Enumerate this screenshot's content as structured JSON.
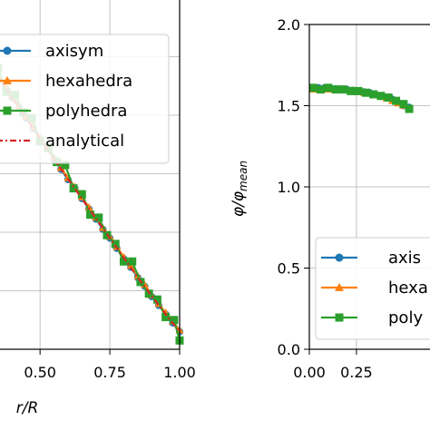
{
  "chart_data": [
    {
      "type": "line",
      "xlabel": "r/R",
      "ylabel": "",
      "xlim": [
        0.35,
        1.0
      ],
      "ylim": [
        0.0,
        1.2
      ],
      "xticks": [
        "0.50",
        "0.75",
        "1.00"
      ],
      "grid": true,
      "legend_position": "top-left",
      "series": [
        {
          "name": "axisym",
          "color": "#1f77b4",
          "marker": "circle",
          "x": [
            0.35,
            0.375,
            0.4,
            0.425,
            0.45,
            0.475,
            0.5,
            0.525,
            0.55,
            0.575,
            0.6,
            0.625,
            0.65,
            0.675,
            0.7,
            0.725,
            0.75,
            0.775,
            0.8,
            0.825,
            0.85,
            0.875,
            0.9,
            0.925,
            0.95,
            0.975,
            1.0
          ],
          "y": [
            0.93,
            0.895,
            0.86,
            0.825,
            0.79,
            0.755,
            0.72,
            0.685,
            0.65,
            0.615,
            0.58,
            0.55,
            0.515,
            0.48,
            0.445,
            0.41,
            0.38,
            0.345,
            0.31,
            0.28,
            0.245,
            0.215,
            0.18,
            0.15,
            0.12,
            0.09,
            0.06
          ]
        },
        {
          "name": "hexahedra",
          "color": "#ff7f0e",
          "marker": "triangle",
          "x": [
            0.35,
            0.375,
            0.4,
            0.425,
            0.45,
            0.475,
            0.5,
            0.525,
            0.55,
            0.575,
            0.6,
            0.625,
            0.65,
            0.675,
            0.7,
            0.725,
            0.75,
            0.775,
            0.8,
            0.825,
            0.85,
            0.875,
            0.9,
            0.925,
            0.95,
            0.975,
            1.0
          ],
          "y": [
            0.935,
            0.9,
            0.865,
            0.83,
            0.795,
            0.76,
            0.725,
            0.69,
            0.655,
            0.62,
            0.585,
            0.555,
            0.52,
            0.485,
            0.45,
            0.415,
            0.385,
            0.35,
            0.315,
            0.285,
            0.25,
            0.22,
            0.185,
            0.155,
            0.125,
            0.095,
            0.065
          ]
        },
        {
          "name": "polyhedra",
          "color": "#2ca02c",
          "marker": "square",
          "x": [
            0.35,
            0.38,
            0.41,
            0.44,
            0.47,
            0.5,
            0.53,
            0.56,
            0.59,
            0.62,
            0.65,
            0.68,
            0.71,
            0.74,
            0.77,
            0.8,
            0.83,
            0.86,
            0.89,
            0.92,
            0.95,
            0.98,
            1.0
          ],
          "y": [
            0.96,
            0.88,
            0.87,
            0.81,
            0.79,
            0.71,
            0.69,
            0.64,
            0.63,
            0.55,
            0.53,
            0.46,
            0.45,
            0.39,
            0.36,
            0.3,
            0.3,
            0.23,
            0.19,
            0.17,
            0.11,
            0.1,
            0.03
          ]
        },
        {
          "name": "analytical",
          "color": "#d62728",
          "marker": "none",
          "linestyle": "dashdot",
          "x": [
            0.35,
            0.45,
            0.55,
            0.65,
            0.75,
            0.85,
            0.95,
            1.0
          ],
          "y": [
            0.93,
            0.79,
            0.65,
            0.515,
            0.38,
            0.245,
            0.12,
            0.06
          ]
        }
      ]
    },
    {
      "type": "line",
      "xlabel": "",
      "ylabel": "φ/φ_mean",
      "ylabel_main": "φ/φ",
      "ylabel_sub": "mean",
      "xlim": [
        0.0,
        0.65
      ],
      "ylim": [
        0.0,
        2.0
      ],
      "xticks": [
        "0.00",
        "0.25"
      ],
      "yticks": [
        "0.0",
        "0.5",
        "1.0",
        "1.5",
        "2.0"
      ],
      "grid": true,
      "legend_position": "bottom-right",
      "series": [
        {
          "name": "axisym",
          "legend_label": "axis",
          "color": "#1f77b4",
          "marker": "circle",
          "x": [
            0.02,
            0.05,
            0.08,
            0.11,
            0.14,
            0.17,
            0.2,
            0.23,
            0.26,
            0.29,
            0.32,
            0.35,
            0.38,
            0.41,
            0.44,
            0.47,
            0.5,
            0.53
          ],
          "y": [
            1.61,
            1.61,
            1.61,
            1.61,
            1.605,
            1.6,
            1.6,
            1.595,
            1.59,
            1.585,
            1.58,
            1.57,
            1.56,
            1.55,
            1.54,
            1.52,
            1.5,
            1.49
          ]
        },
        {
          "name": "hexahedra",
          "legend_label": "hexa",
          "color": "#ff7f0e",
          "marker": "triangle",
          "x": [
            0.02,
            0.05,
            0.08,
            0.11,
            0.14,
            0.17,
            0.2,
            0.23,
            0.26,
            0.29,
            0.32,
            0.35,
            0.38,
            0.41,
            0.44,
            0.47,
            0.5,
            0.53
          ],
          "y": [
            1.6,
            1.6,
            1.6,
            1.6,
            1.6,
            1.595,
            1.595,
            1.59,
            1.585,
            1.58,
            1.575,
            1.565,
            1.555,
            1.545,
            1.53,
            1.515,
            1.5,
            1.48
          ]
        },
        {
          "name": "polyhedra",
          "legend_label": "poly",
          "color": "#2ca02c",
          "marker": "square",
          "x": [
            0.02,
            0.06,
            0.1,
            0.14,
            0.18,
            0.22,
            0.26,
            0.3,
            0.34,
            0.38,
            0.42,
            0.46,
            0.5,
            0.53
          ],
          "y": [
            1.61,
            1.6,
            1.61,
            1.6,
            1.6,
            1.59,
            1.59,
            1.58,
            1.57,
            1.56,
            1.55,
            1.53,
            1.51,
            1.48
          ]
        }
      ]
    }
  ]
}
